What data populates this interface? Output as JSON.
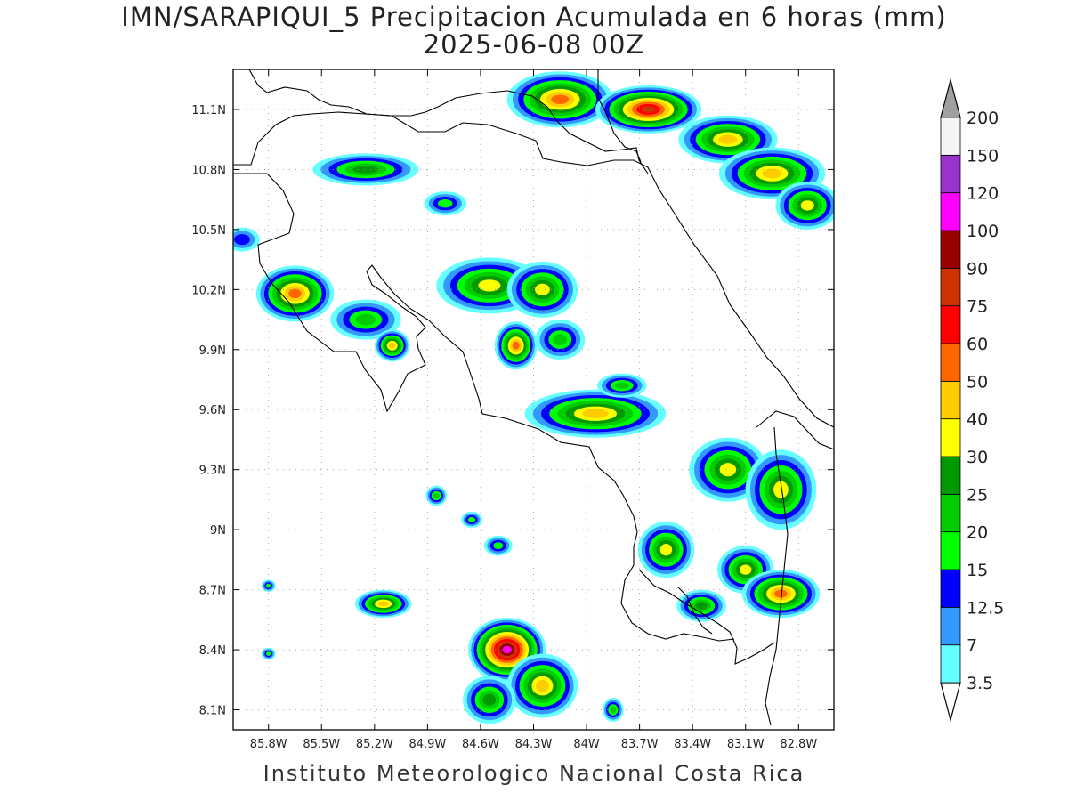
{
  "header": {
    "title_line1": "IMN/SARAPIQUI_5 Precipitacion Acumulada en 6 horas (mm)",
    "title_line2": "2025-06-08 00Z"
  },
  "footer": {
    "text": "Instituto Meteorologico Nacional Costa Rica"
  },
  "map": {
    "lon_range": [
      -86.0,
      -82.6
    ],
    "lat_range": [
      8.0,
      11.3
    ],
    "lon_ticks": [
      {
        "value": -85.8,
        "label": "85.8W"
      },
      {
        "value": -85.5,
        "label": "85.5W"
      },
      {
        "value": -85.2,
        "label": "85.2W"
      },
      {
        "value": -84.9,
        "label": "84.9W"
      },
      {
        "value": -84.6,
        "label": "84.6W"
      },
      {
        "value": -84.3,
        "label": "84.3W"
      },
      {
        "value": -84.0,
        "label": "84W"
      },
      {
        "value": -83.7,
        "label": "83.7W"
      },
      {
        "value": -83.4,
        "label": "83.4W"
      },
      {
        "value": -83.1,
        "label": "83.1W"
      },
      {
        "value": -82.8,
        "label": "82.8W"
      }
    ],
    "lat_ticks": [
      {
        "value": 11.1,
        "label": "11.1N"
      },
      {
        "value": 10.8,
        "label": "10.8N"
      },
      {
        "value": 10.5,
        "label": "10.5N"
      },
      {
        "value": 10.2,
        "label": "10.2N"
      },
      {
        "value": 9.9,
        "label": "9.9N"
      },
      {
        "value": 9.6,
        "label": "9.6N"
      },
      {
        "value": 9.3,
        "label": "9.3N"
      },
      {
        "value": 9.0,
        "label": "9N"
      },
      {
        "value": 8.7,
        "label": "8.7N"
      },
      {
        "value": 8.4,
        "label": "8.4N"
      },
      {
        "value": 8.1,
        "label": "8.1N"
      }
    ],
    "grid": true,
    "coastline_color": "#000000"
  },
  "colorbar": {
    "levels": [
      {
        "label": "3.5",
        "color": "#66ffff"
      },
      {
        "label": "7",
        "color": "#3399ff"
      },
      {
        "label": "12.5",
        "color": "#0000ff"
      },
      {
        "label": "15",
        "color": "#00ff00"
      },
      {
        "label": "20",
        "color": "#00cc00"
      },
      {
        "label": "25",
        "color": "#009900"
      },
      {
        "label": "30",
        "color": "#ffff00"
      },
      {
        "label": "40",
        "color": "#ffcc00"
      },
      {
        "label": "50",
        "color": "#ff6600"
      },
      {
        "label": "60",
        "color": "#ff0000"
      },
      {
        "label": "75",
        "color": "#cc3300"
      },
      {
        "label": "90",
        "color": "#990000"
      },
      {
        "label": "100",
        "color": "#ff00ff"
      },
      {
        "label": "120",
        "color": "#9933cc"
      },
      {
        "label": "150",
        "color": "#f5f5f5"
      },
      {
        "label": "200",
        "color": "#a0a0a0"
      }
    ],
    "under_color": "#ffffff",
    "over_color": "#a0a0a0"
  },
  "precip_cells": [
    {
      "lon": -84.15,
      "lat": 11.15,
      "rlon": 0.3,
      "rlat": 0.14,
      "peak": 9
    },
    {
      "lon": -83.65,
      "lat": 11.1,
      "rlon": 0.3,
      "rlat": 0.12,
      "peak": 11
    },
    {
      "lon": -83.2,
      "lat": 10.95,
      "rlon": 0.28,
      "rlat": 0.12,
      "peak": 8
    },
    {
      "lon": -82.95,
      "lat": 10.78,
      "rlon": 0.3,
      "rlat": 0.13,
      "peak": 8
    },
    {
      "lon": -82.75,
      "lat": 10.62,
      "rlon": 0.18,
      "rlat": 0.12,
      "peak": 7
    },
    {
      "lon": -85.25,
      "lat": 10.8,
      "rlon": 0.3,
      "rlat": 0.08,
      "peak": 6
    },
    {
      "lon": -84.8,
      "lat": 10.63,
      "rlon": 0.12,
      "rlat": 0.06,
      "peak": 4
    },
    {
      "lon": -85.65,
      "lat": 10.18,
      "rlon": 0.22,
      "rlat": 0.14,
      "peak": 9
    },
    {
      "lon": -85.25,
      "lat": 10.05,
      "rlon": 0.2,
      "rlat": 0.1,
      "peak": 5
    },
    {
      "lon": -85.1,
      "lat": 9.92,
      "rlon": 0.1,
      "rlat": 0.08,
      "peak": 8
    },
    {
      "lon": -84.55,
      "lat": 10.22,
      "rlon": 0.3,
      "rlat": 0.14,
      "peak": 7
    },
    {
      "lon": -84.25,
      "lat": 10.2,
      "rlon": 0.2,
      "rlat": 0.14,
      "peak": 7
    },
    {
      "lon": -84.4,
      "lat": 9.92,
      "rlon": 0.12,
      "rlat": 0.12,
      "peak": 9
    },
    {
      "lon": -84.15,
      "lat": 9.95,
      "rlon": 0.14,
      "rlat": 0.1,
      "peak": 5
    },
    {
      "lon": -83.95,
      "lat": 9.58,
      "rlon": 0.4,
      "rlat": 0.12,
      "peak": 8
    },
    {
      "lon": -83.8,
      "lat": 9.72,
      "rlon": 0.14,
      "rlat": 0.06,
      "peak": 5
    },
    {
      "lon": -83.2,
      "lat": 9.3,
      "rlon": 0.22,
      "rlat": 0.16,
      "peak": 7
    },
    {
      "lon": -82.9,
      "lat": 9.2,
      "rlon": 0.2,
      "rlat": 0.2,
      "peak": 7
    },
    {
      "lon": -83.55,
      "lat": 8.9,
      "rlon": 0.16,
      "rlat": 0.14,
      "peak": 7
    },
    {
      "lon": -83.1,
      "lat": 8.8,
      "rlon": 0.16,
      "rlat": 0.12,
      "peak": 7
    },
    {
      "lon": -82.9,
      "lat": 8.68,
      "rlon": 0.22,
      "rlat": 0.12,
      "peak": 9
    },
    {
      "lon": -83.35,
      "lat": 8.62,
      "rlon": 0.14,
      "rlat": 0.08,
      "peak": 6
    },
    {
      "lon": -84.85,
      "lat": 9.17,
      "rlon": 0.06,
      "rlat": 0.05,
      "peak": 5
    },
    {
      "lon": -84.65,
      "lat": 9.05,
      "rlon": 0.06,
      "rlat": 0.04,
      "peak": 4
    },
    {
      "lon": -84.5,
      "lat": 8.92,
      "rlon": 0.08,
      "rlat": 0.05,
      "peak": 4
    },
    {
      "lon": -85.15,
      "lat": 8.63,
      "rlon": 0.16,
      "rlat": 0.07,
      "peak": 8
    },
    {
      "lon": -84.45,
      "lat": 8.4,
      "rlon": 0.22,
      "rlat": 0.16,
      "peak": 13
    },
    {
      "lon": -84.25,
      "lat": 8.22,
      "rlon": 0.2,
      "rlat": 0.16,
      "peak": 8
    },
    {
      "lon": -84.55,
      "lat": 8.15,
      "rlon": 0.15,
      "rlat": 0.12,
      "peak": 6
    },
    {
      "lon": -83.85,
      "lat": 8.1,
      "rlon": 0.06,
      "rlat": 0.06,
      "peak": 5
    },
    {
      "lon": -85.95,
      "lat": 10.45,
      "rlon": 0.1,
      "rlat": 0.06,
      "peak": 3
    },
    {
      "lon": -85.8,
      "lat": 8.72,
      "rlon": 0.04,
      "rlat": 0.03,
      "peak": 4
    },
    {
      "lon": -85.8,
      "lat": 8.38,
      "rlon": 0.04,
      "rlat": 0.03,
      "peak": 4
    }
  ]
}
